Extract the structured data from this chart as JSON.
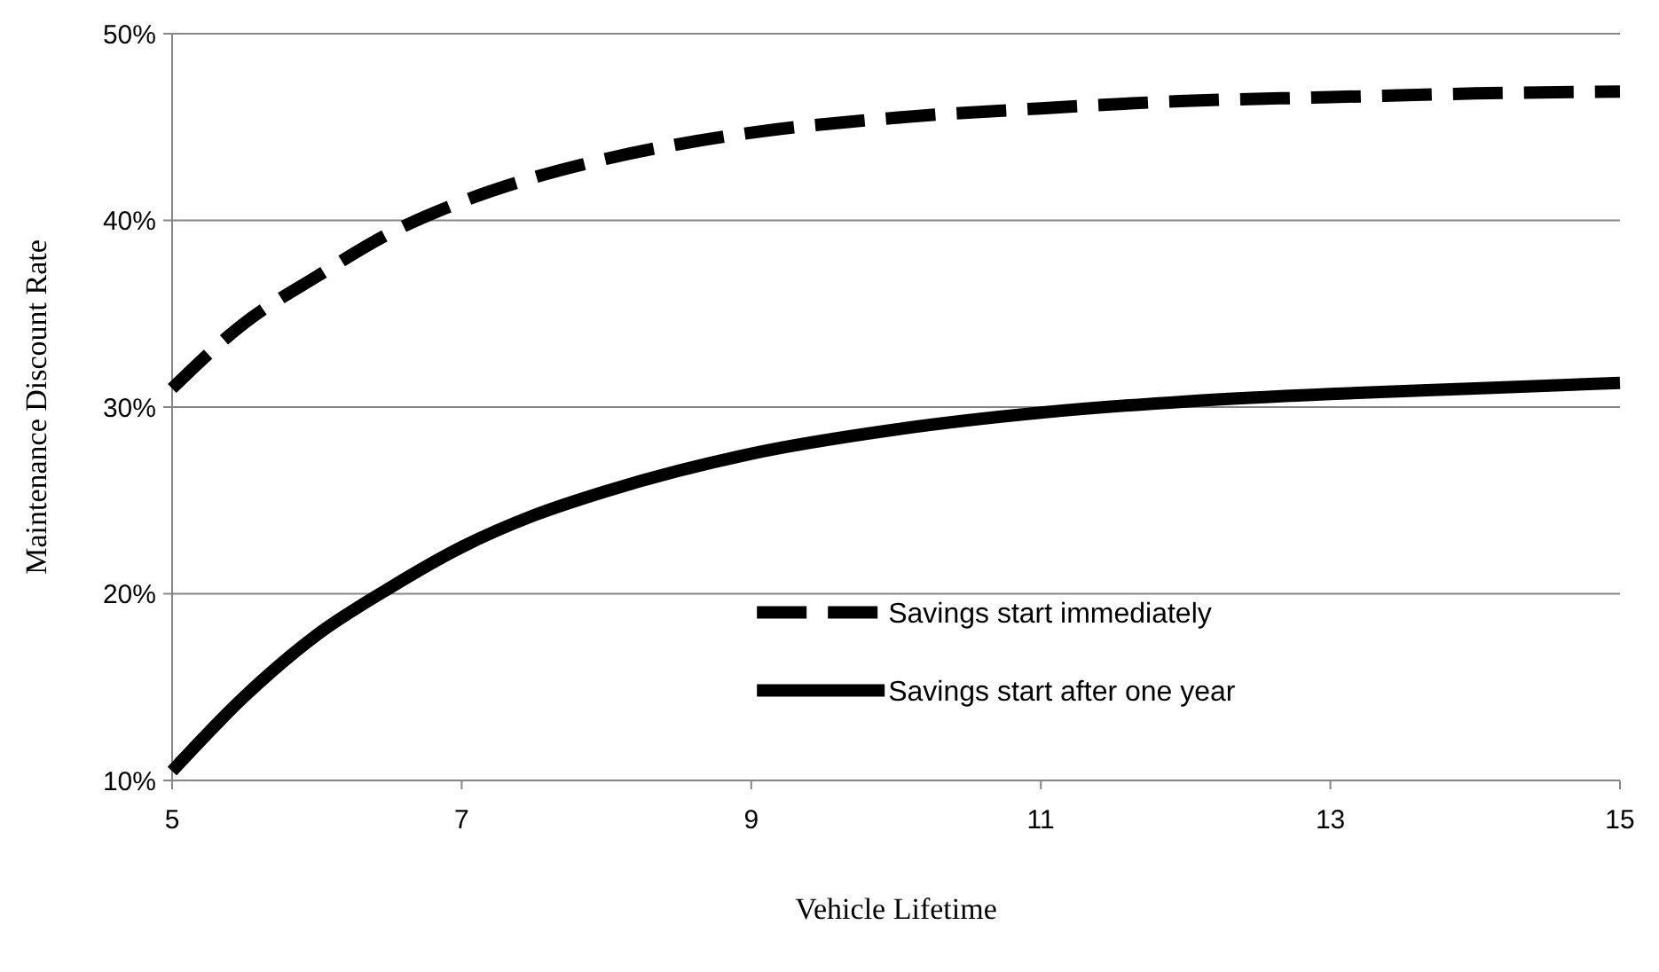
{
  "chart_data": {
    "type": "line",
    "xlabel": "Vehicle Lifetime",
    "ylabel": "Maintenance Discount Rate",
    "xlim": [
      5,
      15
    ],
    "xticks": [
      5,
      7,
      9,
      11,
      13,
      15
    ],
    "ylim": [
      10,
      50
    ],
    "yticks": [
      {
        "value": 10,
        "label": "10%"
      },
      {
        "value": 20,
        "label": "20%"
      },
      {
        "value": 30,
        "label": "30%"
      },
      {
        "value": 40,
        "label": "40%"
      },
      {
        "value": 50,
        "label": "50%"
      }
    ],
    "grid": "y",
    "legend": "bottom right",
    "series": [
      {
        "name": "Savings start immediately",
        "color": "#000000",
        "line_style": "dashed",
        "x": [
          5,
          5.5,
          6,
          6.5,
          7,
          7.5,
          8,
          9,
          10,
          11,
          12,
          13,
          14,
          15
        ],
        "values": [
          31,
          34.5,
          37,
          39.3,
          41,
          42.3,
          43.3,
          44.7,
          45.5,
          46,
          46.4,
          46.6,
          46.8,
          46.9
        ]
      },
      {
        "name": "Savings start after one year",
        "color": "#000000",
        "line_style": "solid",
        "x": [
          5,
          5.5,
          6,
          6.5,
          7,
          7.5,
          8,
          9,
          10,
          11,
          12,
          13,
          14,
          15
        ],
        "values": [
          10.5,
          14.5,
          17.8,
          20.3,
          22.5,
          24.2,
          25.5,
          27.5,
          28.8,
          29.7,
          30.3,
          30.7,
          31,
          31.3
        ]
      }
    ]
  }
}
